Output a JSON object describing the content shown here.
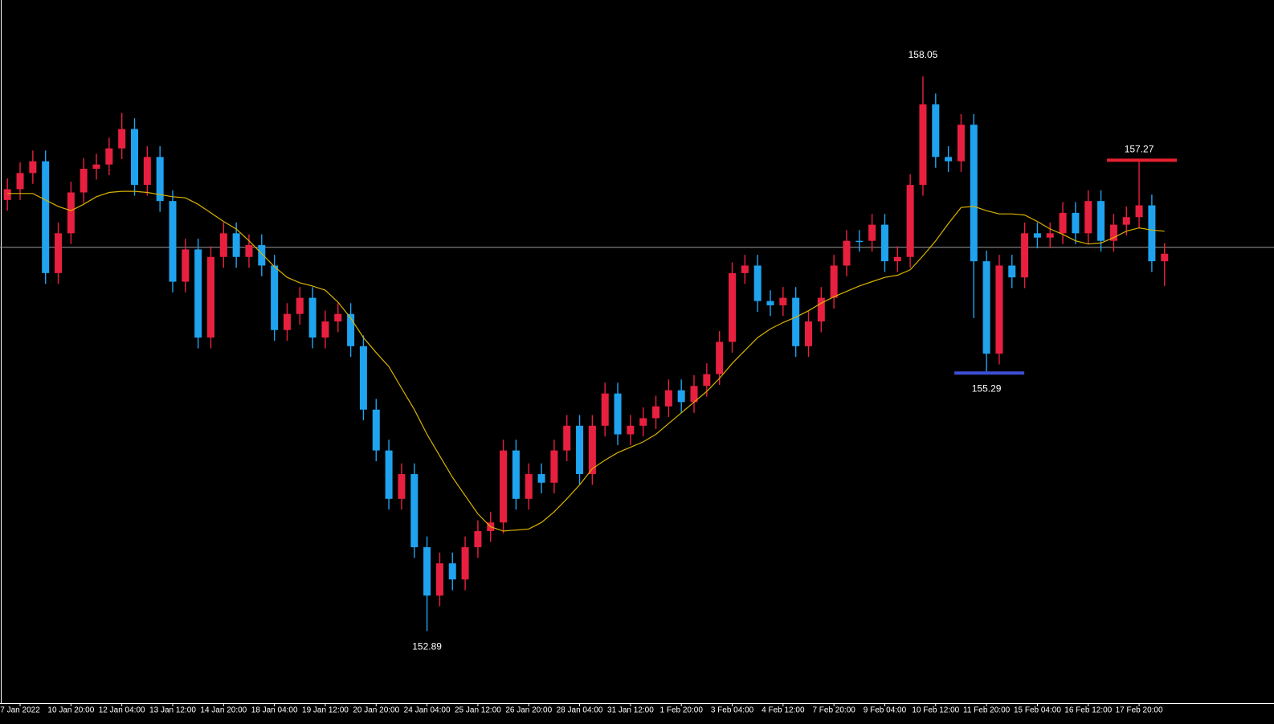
{
  "chart_data": {
    "type": "candlestick",
    "up_color": "#e8203f",
    "down_color": "#1fa3ef",
    "ylim": [
      152.22,
      158.76
    ],
    "categories": [
      null,
      "7 Jan 2022",
      null,
      null,
      null,
      "10 Jan 20:00",
      null,
      null,
      null,
      "12 Jan 04:00",
      null,
      null,
      null,
      "13 Jan 12:00",
      null,
      null,
      null,
      "14 Jan 20:00",
      null,
      null,
      null,
      "18 Jan 04:00",
      null,
      null,
      null,
      "19 Jan 12:00",
      null,
      null,
      null,
      "20 Jan 20:00",
      null,
      null,
      null,
      "24 Jan 04:00",
      null,
      null,
      null,
      "25 Jan 12:00",
      null,
      null,
      null,
      "26 Jan 20:00",
      null,
      null,
      null,
      "28 Jan 04:00",
      null,
      null,
      null,
      "31 Jan 12:00",
      null,
      null,
      null,
      "1 Feb 20:00",
      null,
      null,
      null,
      "3 Feb 04:00",
      null,
      null,
      null,
      "4 Feb 12:00",
      null,
      null,
      null,
      "7 Feb 20:00",
      null,
      null,
      null,
      "9 Feb 04:00",
      null,
      null,
      null,
      "10 Feb 12:00",
      null,
      null,
      null,
      "11 Feb 20:00",
      null,
      null,
      null,
      "15 Feb 04:00",
      null,
      null,
      null,
      "16 Feb 12:00",
      null,
      null,
      null,
      "17 Feb 20:00",
      null,
      null
    ],
    "open": [
      156.9,
      157.0,
      157.15,
      157.26,
      156.22,
      156.59,
      156.97,
      157.19,
      157.23,
      157.38,
      157.56,
      157.04,
      157.3,
      156.89,
      156.14,
      156.44,
      155.62,
      156.37,
      156.59,
      156.37,
      156.48,
      156.29,
      155.69,
      155.84,
      155.99,
      155.62,
      155.77,
      155.84,
      155.54,
      154.95,
      154.57,
      154.12,
      154.35,
      153.67,
      153.22,
      153.52,
      153.37,
      153.67,
      153.82,
      153.9,
      154.57,
      154.12,
      154.35,
      154.27,
      154.57,
      154.8,
      154.35,
      154.8,
      155.1,
      154.72,
      154.8,
      154.87,
      154.98,
      155.13,
      155.02,
      155.17,
      155.28,
      155.58,
      156.22,
      156.29,
      155.96,
      155.92,
      155.99,
      155.54,
      155.77,
      155.99,
      156.29,
      156.52,
      156.52,
      156.67,
      156.33,
      156.37,
      157.04,
      157.79,
      157.3,
      157.26,
      157.6,
      156.33,
      155.47,
      156.29,
      156.18,
      156.59,
      156.55,
      156.59,
      156.78,
      156.59,
      156.89,
      156.52,
      156.67,
      156.74,
      156.85,
      156.33
    ],
    "high": [
      157.1,
      157.25,
      157.36,
      157.36,
      156.69,
      157.07,
      157.29,
      157.33,
      157.48,
      157.71,
      157.66,
      157.4,
      157.4,
      156.99,
      156.54,
      156.54,
      156.47,
      156.69,
      156.69,
      156.58,
      156.58,
      156.39,
      155.94,
      156.09,
      156.09,
      155.87,
      155.94,
      155.94,
      155.64,
      155.05,
      154.67,
      154.45,
      154.45,
      153.77,
      153.62,
      153.62,
      153.77,
      153.92,
      154.0,
      154.67,
      154.67,
      154.45,
      154.45,
      154.67,
      154.9,
      154.9,
      154.9,
      155.2,
      155.2,
      154.9,
      154.97,
      155.08,
      155.23,
      155.23,
      155.27,
      155.38,
      155.68,
      156.32,
      156.39,
      156.39,
      156.06,
      156.09,
      156.09,
      155.87,
      156.09,
      156.39,
      156.62,
      156.62,
      156.77,
      156.77,
      156.47,
      157.14,
      158.05,
      157.89,
      157.4,
      157.7,
      157.7,
      156.43,
      156.39,
      156.39,
      156.69,
      156.69,
      156.69,
      156.88,
      156.88,
      156.99,
      156.99,
      156.77,
      156.84,
      157.27,
      156.95,
      156.5
    ],
    "low": [
      156.8,
      156.9,
      157.05,
      156.12,
      156.12,
      156.49,
      156.87,
      157.09,
      157.13,
      157.28,
      156.94,
      156.94,
      156.79,
      156.04,
      156.04,
      155.52,
      155.52,
      156.27,
      156.27,
      156.27,
      156.19,
      155.59,
      155.59,
      155.74,
      155.52,
      155.52,
      155.67,
      155.44,
      154.85,
      154.47,
      154.02,
      154.02,
      153.57,
      152.89,
      153.12,
      153.27,
      153.27,
      153.57,
      153.72,
      153.8,
      154.02,
      154.02,
      154.17,
      154.17,
      154.47,
      154.25,
      154.25,
      154.7,
      154.62,
      154.62,
      154.7,
      154.77,
      154.88,
      154.92,
      154.92,
      155.07,
      155.18,
      155.48,
      156.12,
      155.86,
      155.82,
      155.82,
      155.44,
      155.44,
      155.67,
      155.89,
      156.19,
      156.42,
      156.42,
      156.23,
      156.23,
      156.27,
      156.94,
      157.2,
      157.16,
      157.16,
      155.8,
      155.29,
      155.37,
      156.08,
      156.08,
      156.45,
      156.45,
      156.49,
      156.49,
      156.49,
      156.42,
      156.42,
      156.57,
      156.64,
      156.23,
      156.1
    ],
    "close": [
      157.0,
      157.15,
      157.26,
      156.22,
      156.59,
      156.97,
      157.19,
      157.23,
      157.38,
      157.56,
      157.04,
      157.3,
      156.89,
      156.14,
      156.44,
      155.62,
      156.37,
      156.59,
      156.37,
      156.48,
      156.29,
      155.69,
      155.84,
      155.99,
      155.62,
      155.77,
      155.84,
      155.54,
      154.95,
      154.57,
      154.12,
      154.35,
      153.67,
      153.22,
      153.52,
      153.37,
      153.67,
      153.82,
      153.9,
      154.57,
      154.12,
      154.35,
      154.27,
      154.57,
      154.8,
      154.35,
      154.8,
      155.1,
      154.72,
      154.8,
      154.87,
      154.98,
      155.13,
      155.02,
      155.17,
      155.28,
      155.58,
      156.22,
      156.29,
      155.96,
      155.92,
      155.99,
      155.54,
      155.77,
      155.99,
      156.29,
      156.52,
      156.52,
      156.67,
      156.33,
      156.37,
      157.04,
      157.79,
      157.3,
      157.26,
      157.6,
      156.33,
      155.47,
      156.29,
      156.18,
      156.59,
      156.55,
      156.59,
      156.78,
      156.59,
      156.89,
      156.52,
      156.67,
      156.74,
      156.85,
      156.33,
      156.4
    ],
    "ma": {
      "color": "#d9b300",
      "values": [
        156.96,
        156.96,
        156.96,
        156.9,
        156.84,
        156.8,
        156.86,
        156.93,
        156.97,
        156.98,
        156.98,
        156.97,
        156.95,
        156.93,
        156.92,
        156.86,
        156.78,
        156.7,
        156.63,
        156.52,
        156.4,
        156.28,
        156.18,
        156.13,
        156.1,
        156.06,
        155.95,
        155.8,
        155.62,
        155.48,
        155.35,
        155.15,
        154.95,
        154.72,
        154.52,
        154.32,
        154.15,
        153.98,
        153.86,
        153.82,
        153.83,
        153.84,
        153.9,
        154.0,
        154.12,
        154.25,
        154.4,
        154.48,
        154.55,
        154.6,
        154.65,
        154.72,
        154.82,
        154.92,
        155.02,
        155.12,
        155.24,
        155.38,
        155.5,
        155.62,
        155.7,
        155.76,
        155.81,
        155.87,
        155.94,
        156.0,
        156.05,
        156.1,
        156.14,
        156.18,
        156.2,
        156.25,
        156.38,
        156.52,
        156.68,
        156.83,
        156.84,
        156.8,
        156.77,
        156.77,
        156.76,
        156.7,
        156.63,
        156.58,
        156.52,
        156.49,
        156.5,
        156.55,
        156.61,
        156.64,
        156.62,
        156.61
      ]
    },
    "hline": {
      "value": 156.46,
      "color": "#9a9a9a"
    },
    "price_labels": [
      158.05,
      152.89
    ],
    "level_lines": [
      {
        "value": 157.27,
        "color": "#e8202f"
      },
      {
        "value": 155.29,
        "color": "#3d4fd6"
      }
    ]
  }
}
